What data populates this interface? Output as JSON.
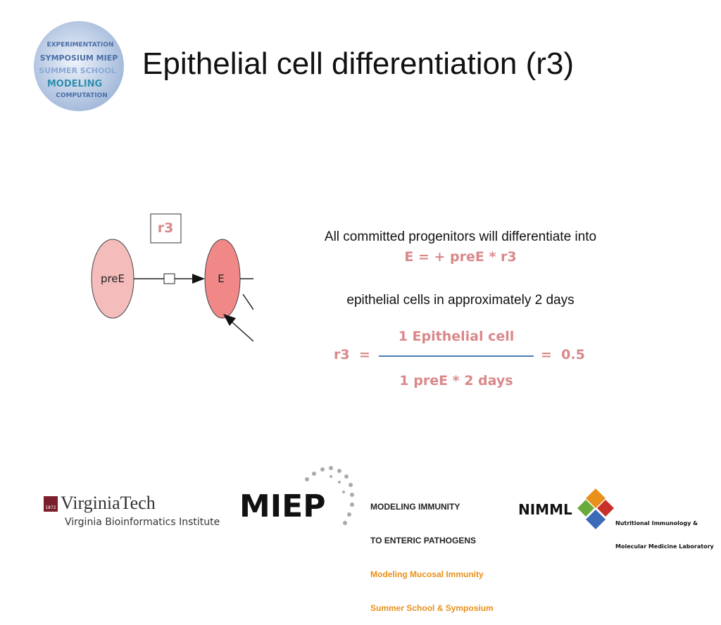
{
  "header": {
    "title": "Epithelial cell differentiation (r3)",
    "logo_words": [
      "EXPERIMENTATION",
      "SYMPOSIUM MIEP",
      "SUMMER SCHOOL",
      "MODELING",
      "COMPUTATION"
    ]
  },
  "diagram": {
    "reaction_label": "r3",
    "nodes": [
      {
        "label": "preE"
      },
      {
        "label": "E"
      }
    ]
  },
  "description": {
    "lines": [
      "All committed progenitors will differentiate into",
      "epithelial cells in approximately 2 days"
    ]
  },
  "equation": "E = + preE * r3",
  "fraction": {
    "lhs": "r3  =",
    "numerator": "1 Epithelial cell",
    "denominator": "1 preE * 2 days",
    "result": "=  0.5"
  },
  "footer": {
    "virginia_tech": {
      "name": "VirginiaTech",
      "year": "1872",
      "institute": "Virginia Bioinformatics Institute"
    },
    "miep": {
      "acronym": "MIEP",
      "lines": [
        "MODELING IMMUNITY",
        "TO ENTERIC PATHOGENS",
        "Modeling Mucosal Immunity",
        "Summer School & Symposium"
      ]
    },
    "nimml": {
      "acronym": "NIMML",
      "lines": [
        "Nutritional Immunology &",
        "Molecular Medicine Laboratory"
      ]
    }
  }
}
